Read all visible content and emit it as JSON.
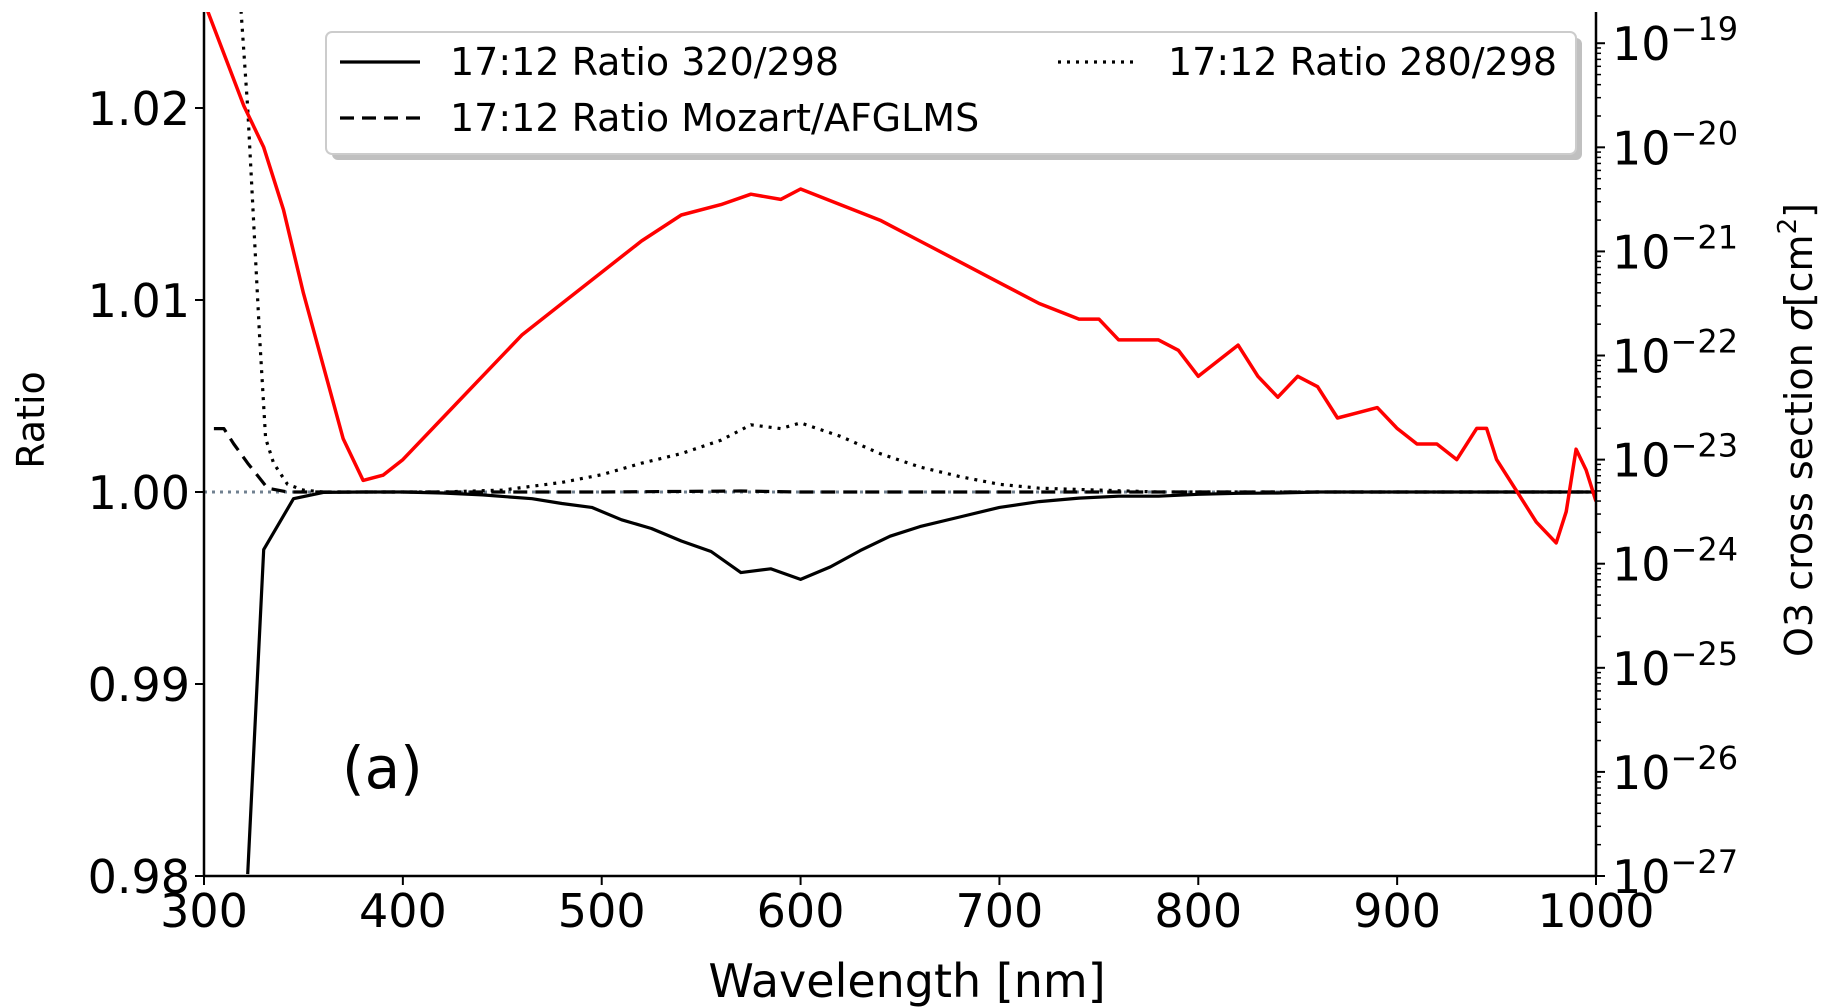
{
  "chart_data": {
    "type": "line",
    "title": "",
    "xlabel": "Wavelength [nm]",
    "ylabel": "Ratio",
    "y2label": "O3 cross section σ[cm²]",
    "y2label_parts": {
      "prefix": "O3 cross  section ",
      "sigma": "σ",
      "unit_open": "[cm",
      "sup": "2",
      "unit_close": "]"
    },
    "xlim": [
      300,
      1000
    ],
    "ylim": [
      0.98,
      1.025
    ],
    "y2_scale": "log",
    "y2lim_exp": [
      -27,
      -18.7
    ],
    "xticks": [
      300,
      400,
      500,
      600,
      700,
      800,
      900,
      1000
    ],
    "xtick_labels": [
      "300",
      "400",
      "500",
      "600",
      "700",
      "800",
      "900",
      "1000"
    ],
    "yticks": [
      0.98,
      0.99,
      1.0,
      1.01,
      1.02
    ],
    "ytick_labels": [
      "0.98",
      "0.99",
      "1.00",
      "1.01",
      "1.02"
    ],
    "y2ticks_exp": [
      -27,
      -26,
      -25,
      -24,
      -23,
      -22,
      -21,
      -20,
      -19
    ],
    "y2tick_base": "10",
    "y2tick_exps": [
      "−27",
      "−26",
      "−25",
      "−24",
      "−23",
      "−22",
      "−21",
      "−20",
      "−19"
    ],
    "annotation": "(a)",
    "reference_line": {
      "y": 1.0,
      "color": "#708090",
      "style": "dotted"
    },
    "legend": {
      "placement": "top",
      "columns": 2
    },
    "series": [
      {
        "name": "17:12 Ratio 320/298",
        "style": "solid",
        "color": "#000000",
        "axis": "left",
        "x": [
          322,
          330,
          345,
          360,
          380,
          400,
          420,
          440,
          465,
          480,
          495,
          510,
          525,
          540,
          555,
          570,
          585,
          600,
          615,
          630,
          645,
          660,
          680,
          700,
          720,
          740,
          760,
          780,
          800,
          820,
          840,
          860,
          880,
          900,
          920,
          940,
          960,
          980,
          1000
        ],
        "values": [
          0.9801,
          0.997,
          0.99965,
          0.99998,
          1.0,
          1.0,
          0.99995,
          0.99985,
          0.99965,
          0.9994,
          0.9992,
          0.99855,
          0.9981,
          0.99745,
          0.9969,
          0.9958,
          0.996,
          0.99545,
          0.9961,
          0.99695,
          0.9977,
          0.9982,
          0.9987,
          0.9992,
          0.9995,
          0.99968,
          0.99978,
          0.99978,
          0.99988,
          0.99993,
          0.99995,
          1.0,
          1.0,
          1.0,
          1.0,
          1.0,
          1.0,
          1.0,
          1.0
        ]
      },
      {
        "name": "17:12 Ratio Mozart/AFGLMS",
        "style": "dashed",
        "color": "#000000",
        "axis": "left",
        "x": [
          305,
          310,
          315,
          322,
          332,
          342,
          360,
          400,
          500,
          570,
          600,
          700,
          800,
          900,
          1000
        ],
        "values": [
          1.0033,
          1.0033,
          1.0025,
          1.0015,
          1.0002,
          1.0,
          1.0,
          1.0,
          1.0,
          1.00005,
          1.0,
          1.0,
          1.0,
          1.0,
          1.0
        ]
      },
      {
        "name": "17:12 Ratio 280/298",
        "style": "dotted",
        "color": "#000000",
        "axis": "left",
        "x": [
          318,
          322,
          325,
          328,
          331,
          335,
          342,
          350,
          360,
          380,
          400,
          420,
          450,
          480,
          500,
          520,
          540,
          560,
          575,
          590,
          600,
          620,
          640,
          660,
          680,
          700,
          720,
          750,
          780,
          800,
          850,
          900,
          1000
        ],
        "values": [
          1.026,
          1.02,
          1.014,
          1.008,
          1.0028,
          1.0015,
          1.0004,
          1.0001,
          1.0,
          1.0,
          1.0,
          1.0,
          1.0001,
          1.0005,
          1.0009,
          1.0015,
          1.002,
          1.0027,
          1.0035,
          1.0033,
          1.0036,
          1.0029,
          1.002,
          1.0013,
          1.0008,
          1.0004,
          1.0002,
          1.0001,
          1.0,
          1.0,
          1.0,
          1.0,
          1.0
        ]
      },
      {
        "name": "O3 cross section",
        "style": "solid",
        "color": "#ff0000",
        "axis": "right",
        "x": [
          300,
          310,
          320,
          330,
          340,
          350,
          360,
          370,
          380,
          390,
          400,
          420,
          440,
          460,
          480,
          500,
          520,
          540,
          560,
          575,
          590,
          600,
          620,
          640,
          660,
          680,
          700,
          720,
          740,
          750,
          760,
          780,
          790,
          800,
          820,
          830,
          840,
          850,
          860,
          870,
          880,
          890,
          900,
          910,
          920,
          930,
          940,
          945,
          950,
          960,
          970,
          980,
          985,
          990,
          995,
          1000
        ],
        "exponents": [
          -18.6,
          -19.1,
          -19.6,
          -20.0,
          -20.6,
          -21.4,
          -22.1,
          -22.8,
          -23.2,
          -23.15,
          -23.0,
          -22.6,
          -22.2,
          -21.8,
          -21.5,
          -21.2,
          -20.9,
          -20.65,
          -20.55,
          -20.45,
          -20.5,
          -20.4,
          -20.55,
          -20.7,
          -20.9,
          -21.1,
          -21.3,
          -21.5,
          -21.65,
          -21.65,
          -21.85,
          -21.85,
          -21.95,
          -22.2,
          -21.9,
          -22.2,
          -22.4,
          -22.2,
          -22.3,
          -22.6,
          -22.55,
          -22.5,
          -22.7,
          -22.85,
          -22.85,
          -23.0,
          -22.7,
          -22.7,
          -23.0,
          -23.3,
          -23.6,
          -23.8,
          -23.5,
          -22.9,
          -23.1,
          -23.4
        ]
      }
    ]
  }
}
